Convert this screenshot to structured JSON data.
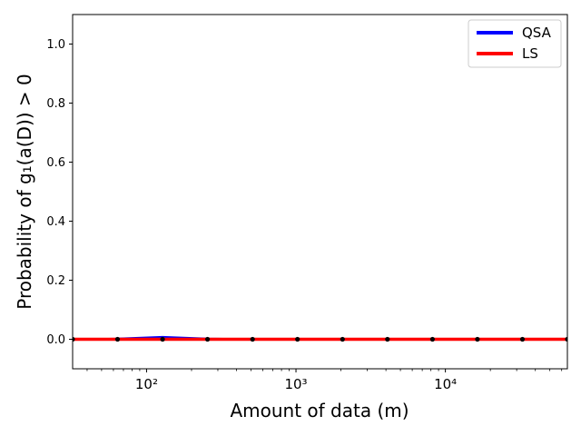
{
  "chart_data": {
    "type": "line",
    "xlabel": "Amount of data (m)",
    "ylabel": "Probability of g₁(a(D)) > 0",
    "xscale": "log",
    "xlim": [
      32,
      65536
    ],
    "ylim": [
      -0.1,
      1.1
    ],
    "xticks": [
      {
        "value": 100,
        "label": "10²"
      },
      {
        "value": 1000,
        "label": "10³"
      },
      {
        "value": 10000,
        "label": "10⁴"
      }
    ],
    "yticks": [
      0.0,
      0.2,
      0.4,
      0.6,
      0.8,
      1.0
    ],
    "ytick_labels": [
      "0.0",
      "0.2",
      "0.4",
      "0.6",
      "0.8",
      "1.0"
    ],
    "legend_position": "top-right",
    "series": [
      {
        "name": "QSA",
        "color": "#0000ff",
        "x": [
          32,
          64,
          128,
          256,
          512,
          1024,
          2048,
          4096,
          8192,
          16384,
          32768,
          65536
        ],
        "y": [
          0.0,
          0.002,
          0.008,
          0.002,
          0.0,
          0.0,
          0.0,
          0.0,
          0.0,
          0.0,
          0.0,
          0.0
        ]
      },
      {
        "name": "LS",
        "color": "#ff0000",
        "x": [
          32,
          64,
          128,
          256,
          512,
          1024,
          2048,
          4096,
          8192,
          16384,
          32768,
          65536
        ],
        "y": [
          0.0,
          0.0,
          0.0,
          0.0,
          0.0,
          0.0,
          0.0,
          0.0,
          0.0,
          0.0,
          0.0,
          0.0
        ]
      }
    ],
    "points": {
      "color": "#000000",
      "x": [
        32,
        64,
        128,
        256,
        512,
        1024,
        2048,
        4096,
        8192,
        16384,
        32768,
        65536
      ],
      "y": [
        0.0,
        0.0,
        0.0,
        0.0,
        0.0,
        0.0,
        0.0,
        0.0,
        0.0,
        0.0,
        0.0,
        0.0
      ]
    }
  }
}
